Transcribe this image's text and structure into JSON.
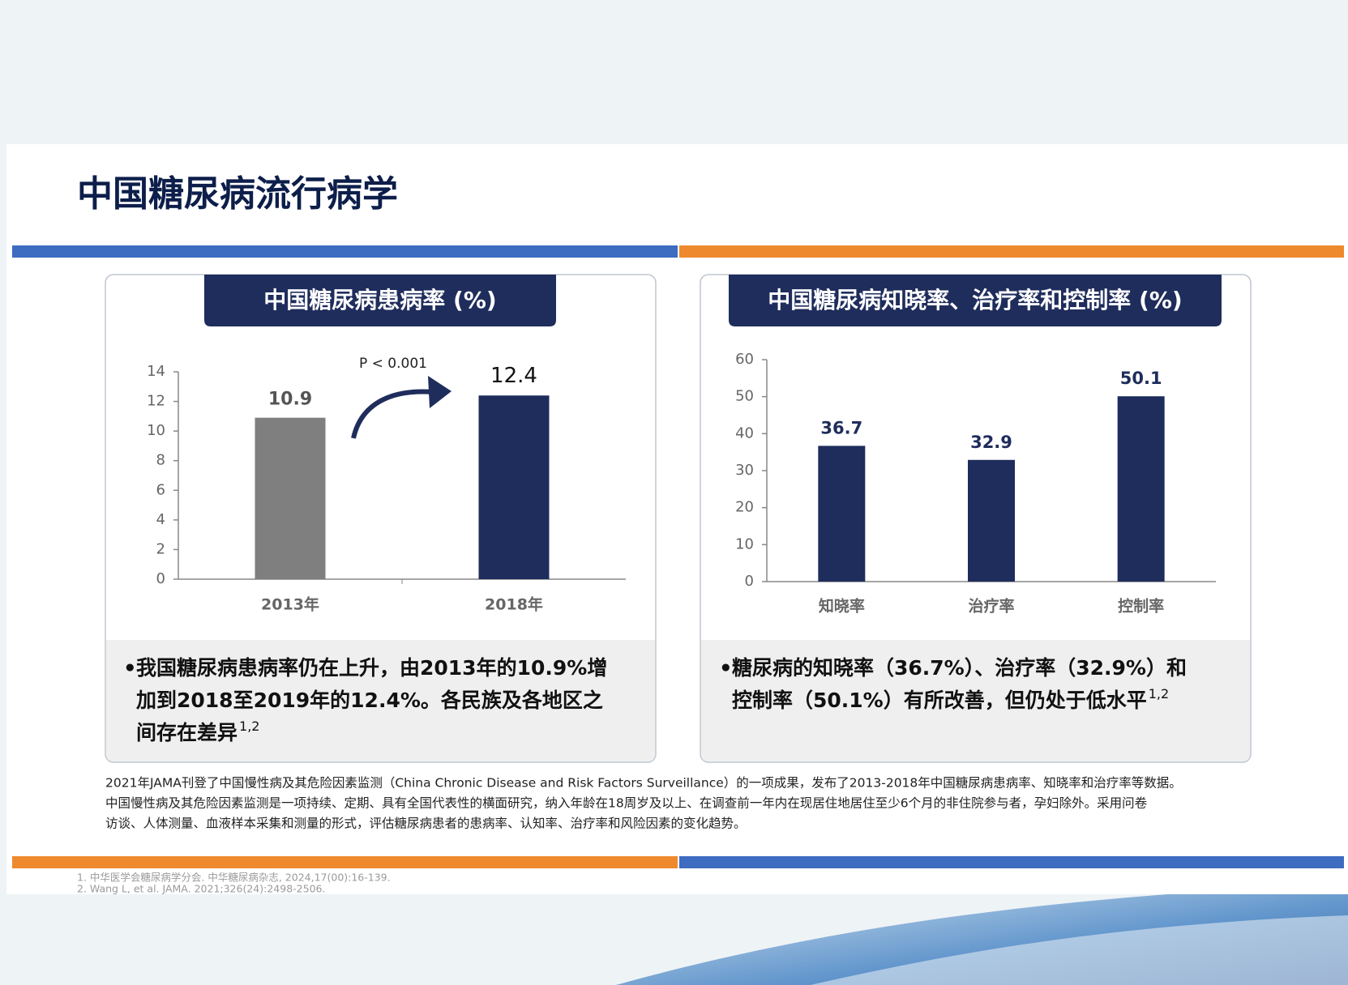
{
  "header": {
    "title": "中国糖尿病流行病学"
  },
  "chart_data": [
    {
      "type": "bar",
      "title": "中国糖尿病患病率 (%)",
      "categories": [
        "2013年",
        "2018年"
      ],
      "values": [
        10.9,
        12.4
      ],
      "colors": [
        "#7f7f7f",
        "#1f2d5c"
      ],
      "ylim": [
        0,
        14
      ],
      "yticks": [
        0,
        2,
        4,
        6,
        8,
        10,
        12,
        14
      ],
      "annotation": "P < 0.001"
    },
    {
      "type": "bar",
      "title": "中国糖尿病知晓率、治疗率和控制率 (%)",
      "categories": [
        "知晓率",
        "治疗率",
        "控制率"
      ],
      "values": [
        36.7,
        32.9,
        50.1
      ],
      "colors": [
        "#1f2d5c",
        "#1f2d5c",
        "#1f2d5c"
      ],
      "ylim": [
        0,
        60
      ],
      "yticks": [
        0,
        10,
        20,
        30,
        40,
        50,
        60
      ]
    }
  ],
  "bullets": [
    {
      "lines": [
        "我国糖尿病患病率仍在上升，由2013年的10.9%增",
        "加到2018至2019年的12.4%。各民族及各地区之",
        "间存在差异"
      ],
      "sup": "1,2"
    },
    {
      "lines": [
        "糖尿病的知晓率（36.7%）、治疗率（32.9%）和",
        "控制率（50.1%）有所改善，但仍处于低水平"
      ],
      "sup": "1,2"
    }
  ],
  "note": [
    "2021年JAMA刊登了中国慢性病及其危险因素监测（China Chronic Disease and Risk Factors Surveillance）的一项成果，发布了2013-2018年中国糖尿病患病率、知晓率和治疗率等数据。",
    "中国慢性病及其危险因素监测是一项持续、定期、具有全国代表性的横面研究，纳入年龄在18周岁及以上、在调查前一年内在现居住地居住至少6个月的非住院参与者，孕妇除外。采用问卷",
    "访谈、人体测量、血液样本采集和测量的形式，评估糖尿病患者的患病率、认知率、治疗率和风险因素的变化趋势。"
  ],
  "references": [
    "1. 中华医学会糖尿病学分会. 中华糖尿病杂志, 2024,17(00):16-139.",
    "2. Wang L, et al. JAMA. 2021;326(24):2498-2506."
  ]
}
